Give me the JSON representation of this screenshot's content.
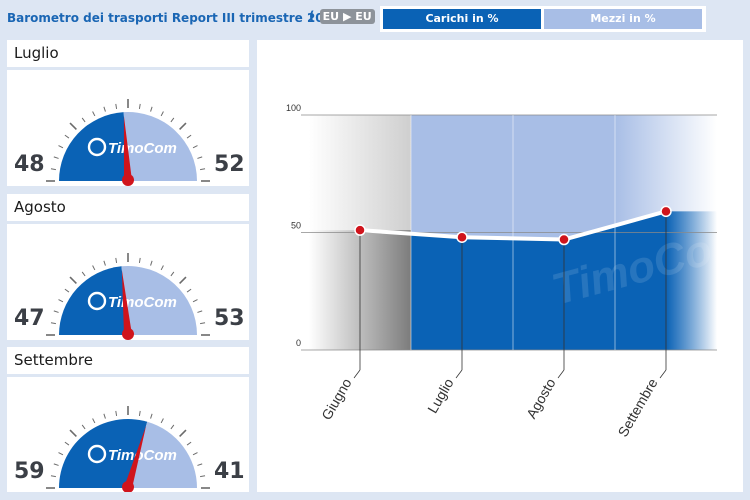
{
  "header": {
    "title": "Barometro dei trasporti Report III trimestre 2013",
    "route": {
      "from": "EU",
      "to": "EU",
      "arrow": "▶",
      "open": "(",
      "close": ")"
    },
    "tabs": [
      {
        "label": "Carichi in %",
        "active": true,
        "color": "#0a62b5"
      },
      {
        "label": "Mezzi in %",
        "active": false,
        "color": "#a8bee6"
      }
    ]
  },
  "gauges": [
    {
      "month": "Luglio",
      "left_value": "48",
      "right_value": "52",
      "logo": "TimoCom"
    },
    {
      "month": "Agosto",
      "left_value": "47",
      "right_value": "53",
      "logo": "TimoCom"
    },
    {
      "month": "Settembre",
      "left_value": "59",
      "right_value": "41",
      "logo": "TimoCom"
    }
  ],
  "colors": {
    "carichi": "#0a62b5",
    "mezzi": "#a8bee6",
    "needle": "#d0141c",
    "line": "#ffffff",
    "history": "#9a9a9a"
  },
  "chart_data": {
    "type": "area",
    "categories": [
      "Giugno",
      "Luglio",
      "Agosto",
      "Settembre"
    ],
    "series": [
      {
        "values": [
          51,
          48,
          47,
          59
        ]
      }
    ],
    "ylim": [
      0,
      100
    ],
    "y_ticks": [
      "0",
      "50",
      "100"
    ],
    "grid": true,
    "watermark": "TimoCom"
  }
}
